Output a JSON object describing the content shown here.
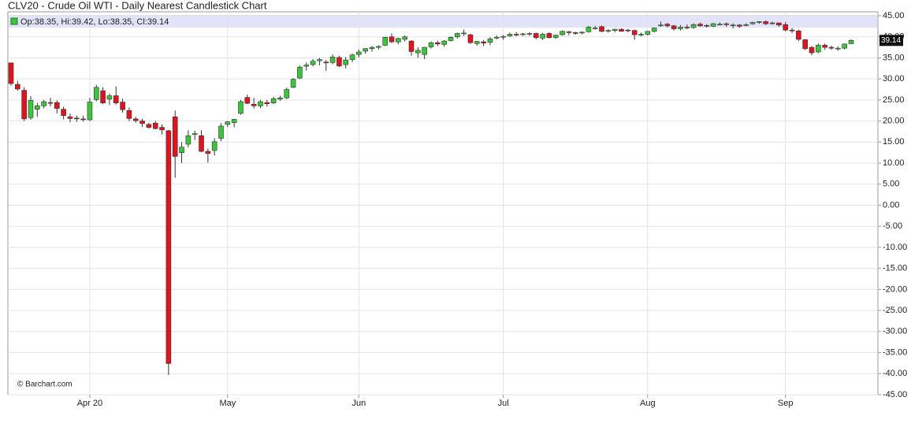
{
  "chart_data": {
    "type": "candlestick",
    "title": "CLV20 - Crude Oil WTI - Daily Nearest Candlestick Chart",
    "legend_text": "Op:38.35, Hi:39.42, Lo:38.35, Cl:39.14",
    "watermark": "© Barchart.com",
    "up_color": "#3cc43c",
    "down_color": "#e0141e",
    "grid": true,
    "categories": [
      null,
      null,
      null,
      null,
      null,
      null,
      null,
      null,
      null,
      null,
      null,
      null,
      "Apr 20",
      null,
      null,
      null,
      null,
      null,
      null,
      null,
      null,
      null,
      null,
      null,
      null,
      null,
      null,
      null,
      null,
      null,
      null,
      null,
      null,
      "May",
      null,
      null,
      null,
      null,
      null,
      null,
      null,
      null,
      null,
      null,
      null,
      null,
      null,
      null,
      null,
      null,
      null,
      null,
      null,
      "Jun",
      null,
      null,
      null,
      null,
      null,
      null,
      null,
      null,
      null,
      null,
      null,
      null,
      null,
      null,
      null,
      null,
      null,
      null,
      null,
      null,
      null,
      "Jul",
      null,
      null,
      null,
      null,
      null,
      null,
      null,
      null,
      null,
      null,
      null,
      null,
      null,
      null,
      null,
      null,
      null,
      null,
      null,
      null,
      null,
      "Aug",
      null,
      null,
      null,
      null,
      null,
      null,
      null,
      null,
      null,
      null,
      null,
      null,
      null,
      null,
      null,
      null,
      null,
      null,
      null,
      null,
      "Sep",
      null,
      null,
      null,
      null,
      null,
      null,
      null,
      null,
      null,
      null
    ],
    "open": [
      33.8,
      28.7,
      27.3,
      20.8,
      22.8,
      23.6,
      24.4,
      24.4,
      22.8,
      21.0,
      20.7,
      20.5,
      20.3,
      25.1,
      27.2,
      25.2,
      26.0,
      24.5,
      22.5,
      20.5,
      20.0,
      19.2,
      19.5,
      18.5,
      17.7,
      21.0,
      12.5,
      14.5,
      16.8,
      16.5,
      12.8,
      13.0,
      15.9,
      19.2,
      19.6,
      21.8,
      25.6,
      24.0,
      23.6,
      24.4,
      24.3,
      25.2,
      25.5,
      28.0,
      30.2,
      33.0,
      33.4,
      34.3,
      34.0,
      33.9,
      35.1,
      33.4,
      34.6,
      35.8,
      36.6,
      37.2,
      37.5,
      38.0,
      40.0,
      38.8,
      39.4,
      39.0,
      36.2,
      35.8,
      37.6,
      38.6,
      38.2,
      39.1,
      40.0,
      40.8,
      40.5,
      38.4,
      38.8,
      38.7,
      39.7,
      39.9,
      40.2,
      40.6,
      40.6,
      40.7,
      40.8,
      39.7,
      40.8,
      39.8,
      40.5,
      41.2,
      41.0,
      40.9,
      41.2,
      42.0,
      42.4,
      41.4,
      41.5,
      41.8,
      41.6,
      41.5,
      40.5,
      40.6,
      41.3,
      42.6,
      43.0,
      42.6,
      41.9,
      42.3,
      42.2,
      43.0,
      42.7,
      42.5,
      43.0,
      43.1,
      42.8,
      42.8,
      42.7,
      43.1,
      43.4,
      43.6,
      43.2,
      43.3,
      42.9,
      41.6,
      41.4,
      39.3,
      37.5,
      36.4,
      38.0,
      37.5,
      37.3,
      37.3,
      38.35
    ],
    "high": [
      33.8,
      29.5,
      28.0,
      25.9,
      24.3,
      25.0,
      25.5,
      24.9,
      23.4,
      21.8,
      21.3,
      21.3,
      25.5,
      28.6,
      28.0,
      26.5,
      28.2,
      25.3,
      23.2,
      21.0,
      20.5,
      19.6,
      20.0,
      19.2,
      17.9,
      22.5,
      15.0,
      17.8,
      17.7,
      17.8,
      13.5,
      15.9,
      19.5,
      20.0,
      20.5,
      25.0,
      26.3,
      25.5,
      25.0,
      25.0,
      25.8,
      26.0,
      27.9,
      30.2,
      33.2,
      33.9,
      34.7,
      35.0,
      34.5,
      35.8,
      35.5,
      35.2,
      36.0,
      37.0,
      37.3,
      37.8,
      38.0,
      40.0,
      40.8,
      39.8,
      40.3,
      39.2,
      37.5,
      37.6,
      38.9,
      39.1,
      39.2,
      40.1,
      41.0,
      41.7,
      40.7,
      39.0,
      39.2,
      39.9,
      40.3,
      40.4,
      41.0,
      41.1,
      40.9,
      41.1,
      41.0,
      40.9,
      41.1,
      40.5,
      41.5,
      41.4,
      41.2,
      41.3,
      42.6,
      42.6,
      42.7,
      41.8,
      41.9,
      42.0,
      41.9,
      41.7,
      41.0,
      41.4,
      42.2,
      43.6,
      43.3,
      42.8,
      42.8,
      42.9,
      43.2,
      43.4,
      43.0,
      43.3,
      43.4,
      43.4,
      43.2,
      43.0,
      43.2,
      43.6,
      43.7,
      43.9,
      43.6,
      43.4,
      43.5,
      42.1,
      41.7,
      39.5,
      37.8,
      38.4,
      38.4,
      37.9,
      37.7,
      38.4,
      39.42
    ],
    "low": [
      28.4,
      27.2,
      20.0,
      20.3,
      21.0,
      23.0,
      23.5,
      21.8,
      20.4,
      19.7,
      19.8,
      19.9,
      20.0,
      24.7,
      24.0,
      23.8,
      23.9,
      22.0,
      20.0,
      19.6,
      18.6,
      18.2,
      18.0,
      16.8,
      -40.3,
      6.5,
      10.0,
      13.8,
      15.5,
      12.6,
      10.1,
      11.8,
      15.2,
      18.6,
      18.5,
      21.5,
      24.0,
      23.0,
      23.1,
      23.4,
      24.0,
      24.8,
      25.2,
      27.8,
      30.0,
      32.0,
      33.0,
      33.2,
      31.9,
      33.5,
      32.8,
      32.5,
      34.0,
      35.1,
      36.0,
      36.5,
      37.0,
      37.8,
      38.5,
      38.2,
      38.9,
      35.5,
      35.0,
      34.7,
      37.2,
      37.8,
      37.6,
      38.9,
      39.6,
      40.2,
      38.3,
      37.9,
      37.8,
      38.0,
      39.4,
      39.3,
      40.0,
      40.1,
      40.2,
      40.2,
      39.4,
      39.2,
      39.6,
      39.5,
      40.3,
      40.4,
      40.5,
      40.6,
      41.0,
      41.7,
      41.1,
      41.0,
      41.1,
      41.3,
      41.1,
      39.3,
      40.1,
      40.3,
      41.0,
      42.4,
      42.2,
      41.5,
      41.5,
      41.8,
      41.9,
      42.4,
      42.2,
      42.3,
      42.7,
      42.4,
      42.0,
      42.1,
      42.5,
      42.9,
      43.1,
      42.8,
      42.9,
      42.4,
      41.3,
      40.9,
      39.0,
      36.8,
      35.6,
      36.1,
      36.9,
      36.9,
      36.7,
      37.0,
      38.35
    ],
    "close": [
      28.9,
      27.6,
      20.5,
      24.9,
      23.6,
      24.6,
      24.2,
      23.0,
      21.3,
      20.6,
      20.5,
      20.4,
      24.5,
      28.0,
      24.3,
      26.0,
      24.3,
      22.7,
      20.6,
      20.1,
      19.4,
      18.5,
      18.2,
      17.9,
      -37.6,
      11.6,
      13.8,
      16.5,
      17.0,
      12.8,
      12.3,
      15.1,
      18.8,
      19.8,
      20.4,
      24.6,
      24.2,
      23.6,
      24.6,
      24.1,
      25.3,
      25.5,
      27.5,
      29.9,
      32.8,
      33.3,
      34.2,
      34.6,
      33.8,
      35.2,
      33.1,
      34.5,
      35.7,
      36.4,
      37.2,
      37.5,
      37.7,
      39.9,
      38.8,
      39.6,
      40.0,
      36.5,
      36.8,
      37.5,
      38.6,
      38.3,
      39.0,
      39.9,
      40.8,
      40.9,
      38.6,
      38.9,
      38.5,
      39.5,
      39.9,
      40.1,
      40.6,
      40.5,
      40.7,
      40.8,
      39.8,
      40.6,
      39.8,
      40.4,
      41.3,
      41.0,
      40.8,
      41.1,
      42.3,
      42.1,
      41.3,
      41.5,
      41.8,
      41.3,
      41.5,
      40.5,
      40.6,
      41.3,
      42.1,
      42.8,
      42.6,
      41.9,
      42.3,
      42.1,
      42.9,
      42.6,
      42.6,
      43.1,
      43.0,
      42.9,
      42.8,
      42.5,
      42.9,
      43.4,
      43.6,
      43.1,
      43.3,
      42.8,
      41.6,
      41.4,
      39.4,
      37.2,
      36.2,
      38.0,
      37.5,
      37.3,
      37.3,
      38.3,
      39.14
    ],
    "ylim": [
      -45,
      45
    ],
    "yticks": [
      {
        "value": 45,
        "label": "45.00"
      },
      {
        "value": 40,
        "label": "40.00"
      },
      {
        "value": 35,
        "label": "35.00"
      },
      {
        "value": 30,
        "label": "30.00"
      },
      {
        "value": 25,
        "label": "25.00"
      },
      {
        "value": 20,
        "label": "20.00"
      },
      {
        "value": 15,
        "label": "15.00"
      },
      {
        "value": 10,
        "label": "10.00"
      },
      {
        "value": 5,
        "label": "5.00"
      },
      {
        "value": 0,
        "label": "0.00"
      },
      {
        "value": -5,
        "label": "-5.00"
      },
      {
        "value": -10,
        "label": "-10.00"
      },
      {
        "value": -15,
        "label": "-15.00"
      },
      {
        "value": -20,
        "label": "-20.00"
      },
      {
        "value": -25,
        "label": "-25.00"
      },
      {
        "value": -30,
        "label": "-30.00"
      },
      {
        "value": -35,
        "label": "-35.00"
      },
      {
        "value": -40,
        "label": "-40.00"
      },
      {
        "value": -45,
        "label": "-45.00"
      }
    ]
  }
}
